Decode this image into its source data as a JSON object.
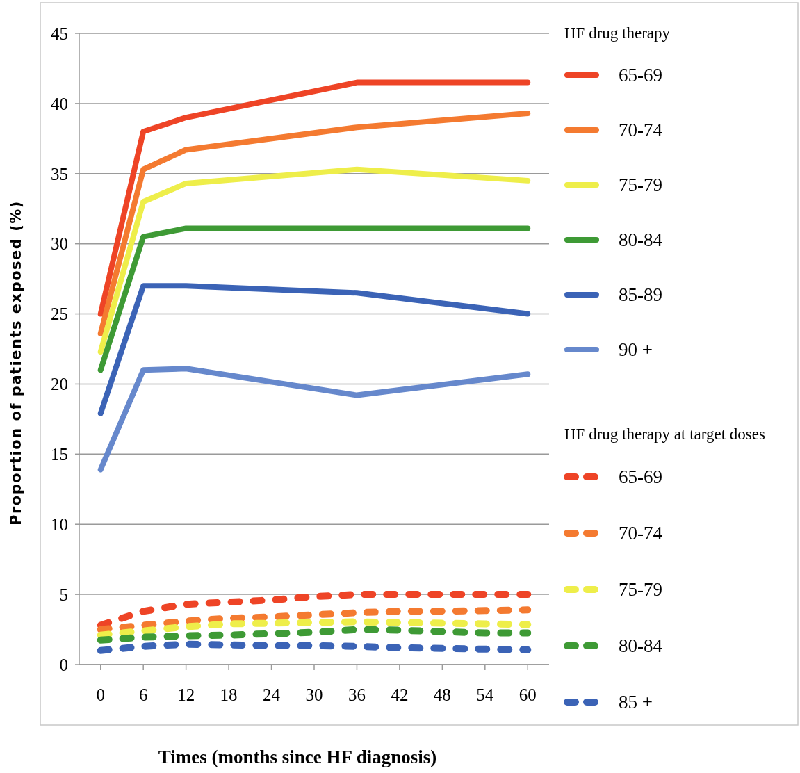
{
  "chart_data": {
    "type": "line",
    "xlabel": "Times (months since HF diagnosis)",
    "ylabel": "Proportion of patients exposed (%)",
    "legend_title": "HF drug therapy",
    "annotations": [
      "HF drug therapy at target doses"
    ],
    "xlim": [
      -3,
      63
    ],
    "xticks": [
      0,
      6,
      12,
      18,
      24,
      30,
      36,
      42,
      48,
      54,
      60
    ],
    "ylim": [
      0,
      45
    ],
    "yticks": [
      0,
      5,
      10,
      15,
      20,
      25,
      30,
      35,
      40,
      45
    ],
    "grid": "y",
    "legend": "right",
    "marker": "none",
    "series": [
      {
        "name": "65-69",
        "color": "#ee4426",
        "line_style": "solid",
        "x": [
          0,
          6,
          12,
          36,
          60
        ],
        "values": [
          25,
          38,
          39,
          41.5,
          41.5
        ]
      },
      {
        "name": "70-74",
        "color": "#f47a30",
        "line_style": "solid",
        "x": [
          0,
          6,
          12,
          36,
          60
        ],
        "values": [
          23.6,
          35.3,
          36.7,
          38.3,
          39.3
        ]
      },
      {
        "name": "75-79",
        "color": "#eeee4a",
        "line_style": "solid",
        "x": [
          0,
          6,
          12,
          36,
          60
        ],
        "values": [
          22.3,
          33,
          34.3,
          35.3,
          34.5
        ]
      },
      {
        "name": "80-84",
        "color": "#3e9a35",
        "line_style": "solid",
        "x": [
          0,
          6,
          12,
          36,
          60
        ],
        "values": [
          21,
          30.5,
          31.1,
          31.1,
          31.1
        ]
      },
      {
        "name": "85-89",
        "color": "#3b63b6",
        "line_style": "solid",
        "x": [
          0,
          6,
          12,
          36,
          60
        ],
        "values": [
          17.9,
          27,
          27,
          26.5,
          25
        ]
      },
      {
        "name": "90 +",
        "color": "#6688cc",
        "line_style": "solid",
        "x": [
          0,
          6,
          12,
          36,
          60
        ],
        "values": [
          13.9,
          21,
          21.1,
          19.2,
          20.7
        ]
      },
      {
        "name": "65-69",
        "color": "#ee4426",
        "line_style": "dashed",
        "x": [
          0,
          6,
          12,
          18,
          24,
          30,
          36,
          42,
          48,
          54,
          60
        ],
        "values": [
          2.8,
          3.8,
          4.3,
          4.45,
          4.6,
          4.85,
          5,
          5,
          5,
          5,
          5
        ]
      },
      {
        "name": "70-74",
        "color": "#f47a30",
        "line_style": "dashed",
        "x": [
          0,
          6,
          12,
          18,
          24,
          30,
          36,
          42,
          48,
          54,
          60
        ],
        "values": [
          2.5,
          2.8,
          3.1,
          3.3,
          3.4,
          3.55,
          3.7,
          3.8,
          3.8,
          3.85,
          3.9
        ]
      },
      {
        "name": "75-79",
        "color": "#eeee4a",
        "line_style": "dashed",
        "x": [
          0,
          6,
          12,
          18,
          24,
          30,
          36,
          42,
          48,
          54,
          60
        ],
        "values": [
          2.1,
          2.4,
          2.7,
          2.9,
          2.95,
          3,
          3.05,
          3,
          2.95,
          2.9,
          2.85
        ]
      },
      {
        "name": "80-84",
        "color": "#3e9a35",
        "line_style": "dashed",
        "x": [
          0,
          6,
          12,
          18,
          24,
          30,
          36,
          42,
          48,
          54,
          60
        ],
        "values": [
          1.75,
          1.95,
          2.05,
          2.1,
          2.2,
          2.3,
          2.5,
          2.45,
          2.35,
          2.25,
          2.25
        ]
      },
      {
        "name": "85 +",
        "color": "#3b63b6",
        "line_style": "dashed",
        "x": [
          0,
          6,
          12,
          18,
          24,
          30,
          36,
          42,
          48,
          54,
          60
        ],
        "values": [
          1,
          1.3,
          1.45,
          1.4,
          1.35,
          1.35,
          1.3,
          1.2,
          1.15,
          1.1,
          1.05
        ]
      }
    ]
  }
}
